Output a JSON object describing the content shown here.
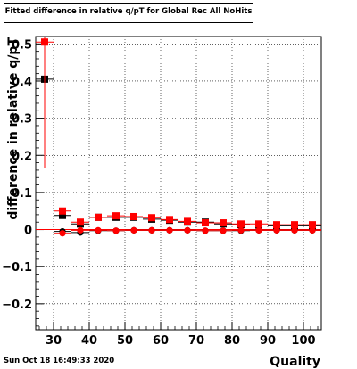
{
  "title": "Fitted difference in relative q/pT for Global Rec All NoHits",
  "timestamp": "Sun Oct 18 16:49:33 2020",
  "chart_data": {
    "type": "scatter",
    "title": "Fitted difference in relative q/pT for Global Rec All NoHits",
    "xlabel": "Quality",
    "ylabel": "difference in relative q/pT",
    "xlim": [
      25,
      105
    ],
    "ylim": [
      -0.27,
      0.52
    ],
    "grid": true,
    "x_ticks": [
      30,
      40,
      50,
      60,
      70,
      80,
      90,
      100
    ],
    "y_ticks": [
      -0.2,
      -0.1,
      0,
      0.1,
      0.2,
      0.3,
      0.4,
      0.5
    ],
    "y_tick_labels": [
      "−0.2",
      "−0.1",
      "0",
      "0.1",
      "0.2",
      "0.3",
      "0.4",
      "0.5"
    ],
    "x_tick_labels": [
      "30",
      "40",
      "50",
      "60",
      "70",
      "80",
      "90",
      "100"
    ],
    "series": [
      {
        "marker": "square",
        "color": "#000000",
        "x": [
          27.5,
          32.5,
          37.5,
          42.5,
          47.5,
          52.5,
          57.5,
          62.5,
          67.5,
          72.5,
          77.5,
          82.5,
          87.5,
          92.5,
          97.5,
          102.5
        ],
        "y": [
          0.405,
          0.038,
          0.015,
          0.033,
          0.033,
          0.033,
          0.028,
          0.025,
          0.02,
          0.02,
          0.015,
          0.013,
          0.012,
          0.01,
          0.01,
          0.01
        ],
        "yerr": [
          0.0,
          0.003,
          0.002,
          0.002,
          0.002,
          0.002,
          0.002,
          0.002,
          0.002,
          0.002,
          0.002,
          0.002,
          0.002,
          0.002,
          0.002,
          0.002
        ]
      },
      {
        "marker": "circle",
        "color": "#000000",
        "x": [
          32.5,
          37.5,
          42.5,
          47.5,
          52.5,
          57.5,
          62.5,
          67.5,
          72.5,
          77.5,
          82.5,
          87.5,
          92.5,
          97.5,
          102.5
        ],
        "y": [
          -0.005,
          -0.008,
          -0.003,
          -0.003,
          -0.002,
          -0.002,
          -0.002,
          -0.002,
          -0.003,
          -0.003,
          -0.003,
          -0.002,
          -0.002,
          -0.002,
          -0.002
        ],
        "yerr": [
          0.0,
          0.0,
          0.0,
          0.0,
          0.0,
          0.0,
          0.0,
          0.0,
          0.0,
          0.0,
          0.0,
          0.0,
          0.0,
          0.0,
          0.0
        ]
      },
      {
        "marker": "square",
        "color": "#ff0000",
        "x": [
          27.5,
          32.5,
          37.5,
          42.5,
          47.5,
          52.5,
          57.5,
          62.5,
          67.5,
          72.5,
          77.5,
          82.5,
          87.5,
          92.5,
          97.5,
          102.5
        ],
        "y": [
          0.505,
          0.05,
          0.02,
          0.033,
          0.037,
          0.035,
          0.032,
          0.027,
          0.022,
          0.018,
          0.018,
          0.015,
          0.015,
          0.013,
          0.013,
          0.013
        ],
        "yerr": [
          0.34,
          0.005,
          0.003,
          0.003,
          0.003,
          0.003,
          0.003,
          0.003,
          0.003,
          0.003,
          0.003,
          0.003,
          0.003,
          0.003,
          0.003,
          0.003
        ]
      },
      {
        "marker": "circle",
        "color": "#ff0000",
        "x": [
          32.5,
          37.5,
          42.5,
          47.5,
          52.5,
          57.5,
          62.5,
          67.5,
          72.5,
          77.5,
          82.5,
          87.5,
          92.5,
          97.5,
          102.5
        ],
        "y": [
          -0.01,
          -0.002,
          -0.002,
          -0.003,
          -0.002,
          -0.002,
          -0.002,
          -0.002,
          -0.003,
          -0.003,
          -0.002,
          -0.002,
          -0.002,
          -0.002,
          -0.002
        ],
        "yerr": [
          0.0,
          0.0,
          0.0,
          0.0,
          0.0,
          0.0,
          0.0,
          0.0,
          0.0,
          0.0,
          0.0,
          0.0,
          0.0,
          0.0,
          0.0
        ]
      }
    ]
  }
}
